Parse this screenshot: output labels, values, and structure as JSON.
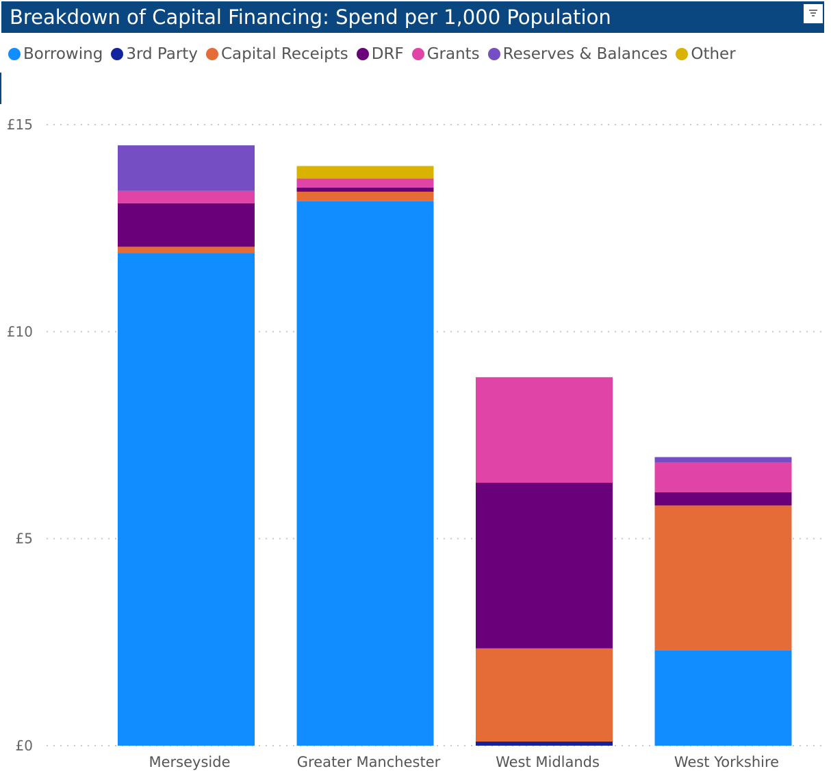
{
  "header": {
    "title": "Breakdown of Capital Financing: Spend per 1,000 Population"
  },
  "toolbar": {
    "filter_icon": "filter-icon"
  },
  "legend": [
    {
      "label": "Borrowing",
      "color": "#118dff"
    },
    {
      "label": "3rd Party",
      "color": "#12239e"
    },
    {
      "label": "Capital Receipts",
      "color": "#e66c37"
    },
    {
      "label": "DRF",
      "color": "#6b007b"
    },
    {
      "label": "Grants",
      "color": "#e044a7"
    },
    {
      "label": "Reserves & Balances",
      "color": "#744ec2"
    },
    {
      "label": "Other",
      "color": "#d9b300"
    }
  ],
  "chart_data": {
    "type": "bar",
    "stacked": true,
    "title": "Breakdown of Capital Financing: Spend per 1,000 Population",
    "categories": [
      "Merseyside",
      "Greater Manchester",
      "West Midlands",
      "West Yorkshire"
    ],
    "series": [
      {
        "name": "Borrowing",
        "color": "#118dff",
        "values": [
          11.9,
          13.15,
          0,
          2.3
        ]
      },
      {
        "name": "3rd Party",
        "color": "#12239e",
        "values": [
          0,
          0,
          0.1,
          0
        ]
      },
      {
        "name": "Capital Receipts",
        "color": "#e66c37",
        "values": [
          0.15,
          0.23,
          2.25,
          3.5
        ]
      },
      {
        "name": "DRF",
        "color": "#6b007b",
        "values": [
          1.05,
          0.1,
          4.0,
          0.32
        ]
      },
      {
        "name": "Grants",
        "color": "#e044a7",
        "values": [
          0.3,
          0.22,
          2.55,
          0.72
        ]
      },
      {
        "name": "Reserves & Balances",
        "color": "#744ec2",
        "values": [
          1.1,
          0,
          0,
          0.13
        ]
      },
      {
        "name": "Other",
        "color": "#d9b300",
        "values": [
          0,
          0.3,
          0,
          0
        ]
      }
    ],
    "ylim": [
      0,
      15
    ],
    "yticks": [
      0,
      5,
      10,
      15
    ],
    "ytick_labels": [
      "£0",
      "£5",
      "£10",
      "£15"
    ],
    "grid": true,
    "legend_position": "top-left",
    "xlabel": "",
    "ylabel": ""
  }
}
